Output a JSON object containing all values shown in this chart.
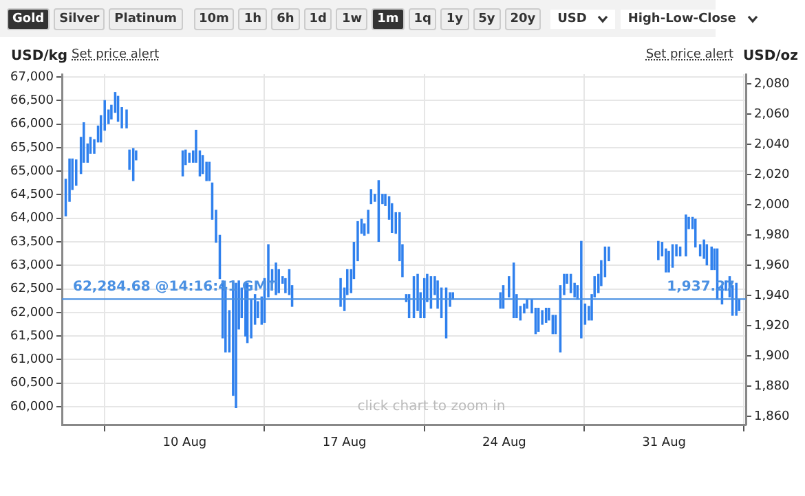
{
  "chart_data": {
    "type": "bar",
    "ylabel": "USD/kg",
    "y2label": "USD/oz",
    "annotations": [
      "Gold",
      "Silver",
      "Platinum",
      "10m",
      "1h",
      "6h",
      "1d",
      "1w",
      "1m",
      "1q",
      "1y",
      "5y",
      "20y",
      "USD",
      "High-Low-Close",
      "Set price alert",
      "Set price alert",
      "click chart to zoom in",
      "1,937.27"
    ],
    "x": [
      "--08-04T19:00",
      "--08-04T23:00",
      "--08-05T02:00",
      "--08-05T06:00",
      "--08-05T11:00",
      "--08-05T14:00",
      "--08-05T18:00",
      "--08-05T21:00",
      "--08-06T01:00",
      "--08-06T05:00",
      "--08-06T08:00",
      "--08-06T12:00",
      "--08-06T16:00",
      "--08-06T19:00",
      "--08-06T23:00",
      "--08-07T02:00",
      "--08-07T06:00",
      "--08-07T11:00",
      "--08-07T14:00",
      "--08-07T18:00",
      "--08-07T21:00",
      "--08-09T22:00",
      "--08-10T01:00",
      "--08-10T05:00",
      "--08-10T09:00",
      "--08-10T12:00",
      "--08-10T16:00",
      "--08-10T19:00",
      "--08-10T23:00",
      "--08-11T02:00",
      "--08-11T05:00",
      "--08-11T09:00",
      "--08-11T13:00",
      "--08-11T16:00",
      "--08-11T19:00",
      "--08-11T23:00",
      "--08-12T03:00",
      "--08-12T06:00",
      "--08-12T09:00",
      "--08-12T12:00",
      "--08-12T16:00",
      "--08-12T18:00",
      "--08-12T22:00",
      "--08-13T02:00",
      "--08-13T05:00",
      "--08-13T09:00",
      "--08-13T12:00",
      "--08-13T16:00",
      "--08-13T20:00",
      "--08-14T00:00",
      "--08-14T03:00",
      "--08-14T07:00",
      "--08-14T10:00",
      "--08-14T14:00",
      "--08-14T17:00",
      "--08-16T20:00",
      "--08-17T00:00",
      "--08-17T03:00",
      "--08-17T07:00",
      "--08-17T10:00",
      "--08-17T14:00",
      "--08-17T18:00",
      "--08-17T21:00",
      "--08-18T01:00",
      "--08-18T04:00",
      "--08-18T08:00",
      "--08-18T12:00",
      "--08-18T16:00",
      "--08-18T19:00",
      "--08-18T23:00",
      "--08-19T02:00",
      "--08-19T06:00",
      "--08-19T10:00",
      "--08-19T13:00",
      "--08-19T17:00",
      "--08-19T20:00",
      "--08-20T01:00",
      "--08-20T05:00",
      "--08-20T08:00",
      "--08-20T12:00",
      "--08-20T15:00",
      "--08-20T19:00",
      "--08-20T23:00",
      "--08-21T02:00",
      "--08-21T06:00",
      "--08-21T11:00",
      "--08-21T15:00",
      "--08-21T18:00",
      "--08-23T20:00",
      "--08-23T23:00",
      "--08-24T05:00",
      "--08-24T10:00",
      "--08-24T13:00",
      "--08-24T17:00",
      "--08-24T21:00",
      "--08-25T00:00",
      "--08-25T05:00",
      "--08-25T09:00",
      "--08-25T12:00",
      "--08-25T16:00",
      "--08-25T20:00",
      "--08-25T23:00",
      "--08-26T03:00",
      "--08-26T06:00",
      "--08-26T11:00",
      "--08-26T15:00",
      "--08-26T18:00",
      "--08-26T22:00",
      "--08-27T02:00",
      "--08-27T05:00",
      "--08-27T09:00",
      "--08-27T13:00",
      "--08-27T17:00",
      "--08-27T20:00",
      "--08-27T23:00",
      "--08-28T03:00",
      "--08-28T06:00",
      "--08-28T10:00",
      "--08-28T14:00",
      "--08-30T18:00",
      "--08-30T22:00",
      "--08-31T02:00",
      "--08-31T05:00",
      "--08-31T09:00",
      "--08-31T13:00",
      "--08-31T17:00",
      "--08-31T23:00",
      "--09-01T02:00",
      "--09-01T06:00",
      "--09-01T09:00",
      "--09-01T14:00",
      "--09-01T18:00",
      "--09-01T21:00",
      "--09-02T02:00",
      "--09-02T05:00",
      "--09-02T08:00",
      "--09-02T13:00",
      "--09-02T17:00",
      "--09-02T21:00",
      "--09-03T00:00",
      "--09-03T04:00",
      "--09-03T07:00"
    ],
    "base": [
      64050,
      64360,
      64610,
      64700,
      64950,
      65190,
      65190,
      65380,
      65380,
      65620,
      65620,
      65870,
      66010,
      66110,
      66250,
      66060,
      65920,
      65920,
      65040,
      64800,
      65240,
      64900,
      65140,
      65190,
      65190,
      65190,
      64900,
      64950,
      64800,
      64800,
      63980,
      63490,
      62720,
      61460,
      61160,
      61160,
      60240,
      59980,
      61650,
      61890,
      61500,
      61360,
      61460,
      61750,
      61890,
      61750,
      61790,
      62330,
      62620,
      62380,
      62420,
      62620,
      62420,
      62380,
      62130,
      62130,
      62040,
      62380,
      62420,
      62720,
      63100,
      63680,
      63640,
      63680,
      64310,
      64360,
      63510,
      64310,
      64270,
      63980,
      63700,
      63680,
      63100,
      62760,
      62230,
      61890,
      61890,
      62040,
      61890,
      61890,
      62230,
      62090,
      62380,
      62090,
      61890,
      61460,
      62130,
      62280,
      62090,
      62090,
      62330,
      61890,
      61890,
      61840,
      61990,
      62090,
      61990,
      61550,
      61600,
      61750,
      61790,
      61840,
      61550,
      61550,
      61160,
      62380,
      62620,
      62420,
      62330,
      62280,
      61460,
      61750,
      61840,
      61840,
      62330,
      62420,
      62570,
      62760,
      63100,
      63120,
      63200,
      62860,
      62860,
      62960,
      63200,
      63200,
      63200,
      63780,
      63780,
      63390,
      63200,
      63150,
      63010,
      62910,
      62910,
      62280,
      62180,
      62470,
      62330,
      61940,
      61940,
      62040
    ],
    "values": [
      780,
      900,
      650,
      540,
      770,
      840,
      390,
      340,
      290,
      340,
      560,
      630,
      290,
      290,
      420,
      530,
      430,
      380,
      410,
      680,
      190,
      530,
      310,
      190,
      240,
      680,
      530,
      380,
      390,
      390,
      770,
      680,
      920,
      1210,
      1360,
      880,
      2430,
      2640,
      1020,
      630,
      1120,
      1260,
      820,
      630,
      340,
      580,
      930,
      1110,
      290,
      670,
      490,
      140,
      300,
      530,
      440,
      590,
      480,
      530,
      490,
      770,
      830,
      300,
      240,
      490,
      300,
      150,
      1290,
      200,
      240,
      480,
      610,
      440,
      1020,
      680,
      150,
      490,
      870,
      770,
      530,
      830,
      580,
      670,
      380,
      580,
      630,
      1060,
      290,
      140,
      330,
      480,
      430,
      1160,
      490,
      290,
      190,
      190,
      290,
      540,
      490,
      290,
      300,
      250,
      390,
      390,
      1410,
      430,
      190,
      390,
      290,
      290,
      2050,
      430,
      290,
      540,
      430,
      390,
      530,
      630,
      290,
      390,
      290,
      490,
      440,
      480,
      240,
      190,
      870,
      240,
      240,
      590,
      240,
      390,
      430,
      480,
      440,
      1070,
      390,
      200,
      430,
      630,
      680,
      240
    ],
    "color": "#2f80ed",
    "xlim": [
      "--08-04T15:00",
      "--09-03T14:00"
    ],
    "xticks": [
      {
        "value": "--08-10",
        "label": "10 Aug"
      },
      {
        "value": "--08-17",
        "label": "17 Aug"
      },
      {
        "value": "--08-24",
        "label": "24 Aug"
      },
      {
        "value": "--08-31",
        "label": "31 Aug"
      }
    ],
    "ylim": [
      59620,
      67060
    ],
    "yticks": [
      {
        "value": 60000,
        "label": "60,000"
      },
      {
        "value": 60500,
        "label": "60,500"
      },
      {
        "value": 61000,
        "label": "61,000"
      },
      {
        "value": 61500,
        "label": "61,500"
      },
      {
        "value": 62000,
        "label": "62,000"
      },
      {
        "value": 62500,
        "label": "62,500"
      },
      {
        "value": 63000,
        "label": "63,000"
      },
      {
        "value": 63500,
        "label": "63,500"
      },
      {
        "value": 64000,
        "label": "64,000"
      },
      {
        "value": 64500,
        "label": "64,500"
      },
      {
        "value": 65000,
        "label": "65,000"
      },
      {
        "value": 65500,
        "label": "65,500"
      },
      {
        "value": 66000,
        "label": "66,000"
      },
      {
        "value": 66500,
        "label": "66,500"
      },
      {
        "value": 67000,
        "label": "67,000"
      }
    ],
    "y2lim": [
      1854.5,
      2086.4
    ],
    "y2ticks": [
      {
        "value": 1860,
        "label": "1,860"
      },
      {
        "value": 1880,
        "label": "1,880"
      },
      {
        "value": 1900,
        "label": "1,900"
      },
      {
        "value": 1920,
        "label": "1,920"
      },
      {
        "value": 1940,
        "label": "1,940"
      },
      {
        "value": 1960,
        "label": "1,960"
      },
      {
        "value": 1980,
        "label": "1,980"
      },
      {
        "value": 2000,
        "label": "2,000"
      },
      {
        "value": 2020,
        "label": "2,020"
      },
      {
        "value": 2040,
        "label": "2,040"
      },
      {
        "value": 2060,
        "label": "2,060"
      },
      {
        "value": 2080,
        "label": "2,080"
      }
    ],
    "ref_lines": [
      {
        "axis": "y",
        "value": 62284.68,
        "label": "62,284.68 @14:16:41 GMT",
        "color": "#4a90e2"
      }
    ],
    "grid": true,
    "legend": false
  }
}
